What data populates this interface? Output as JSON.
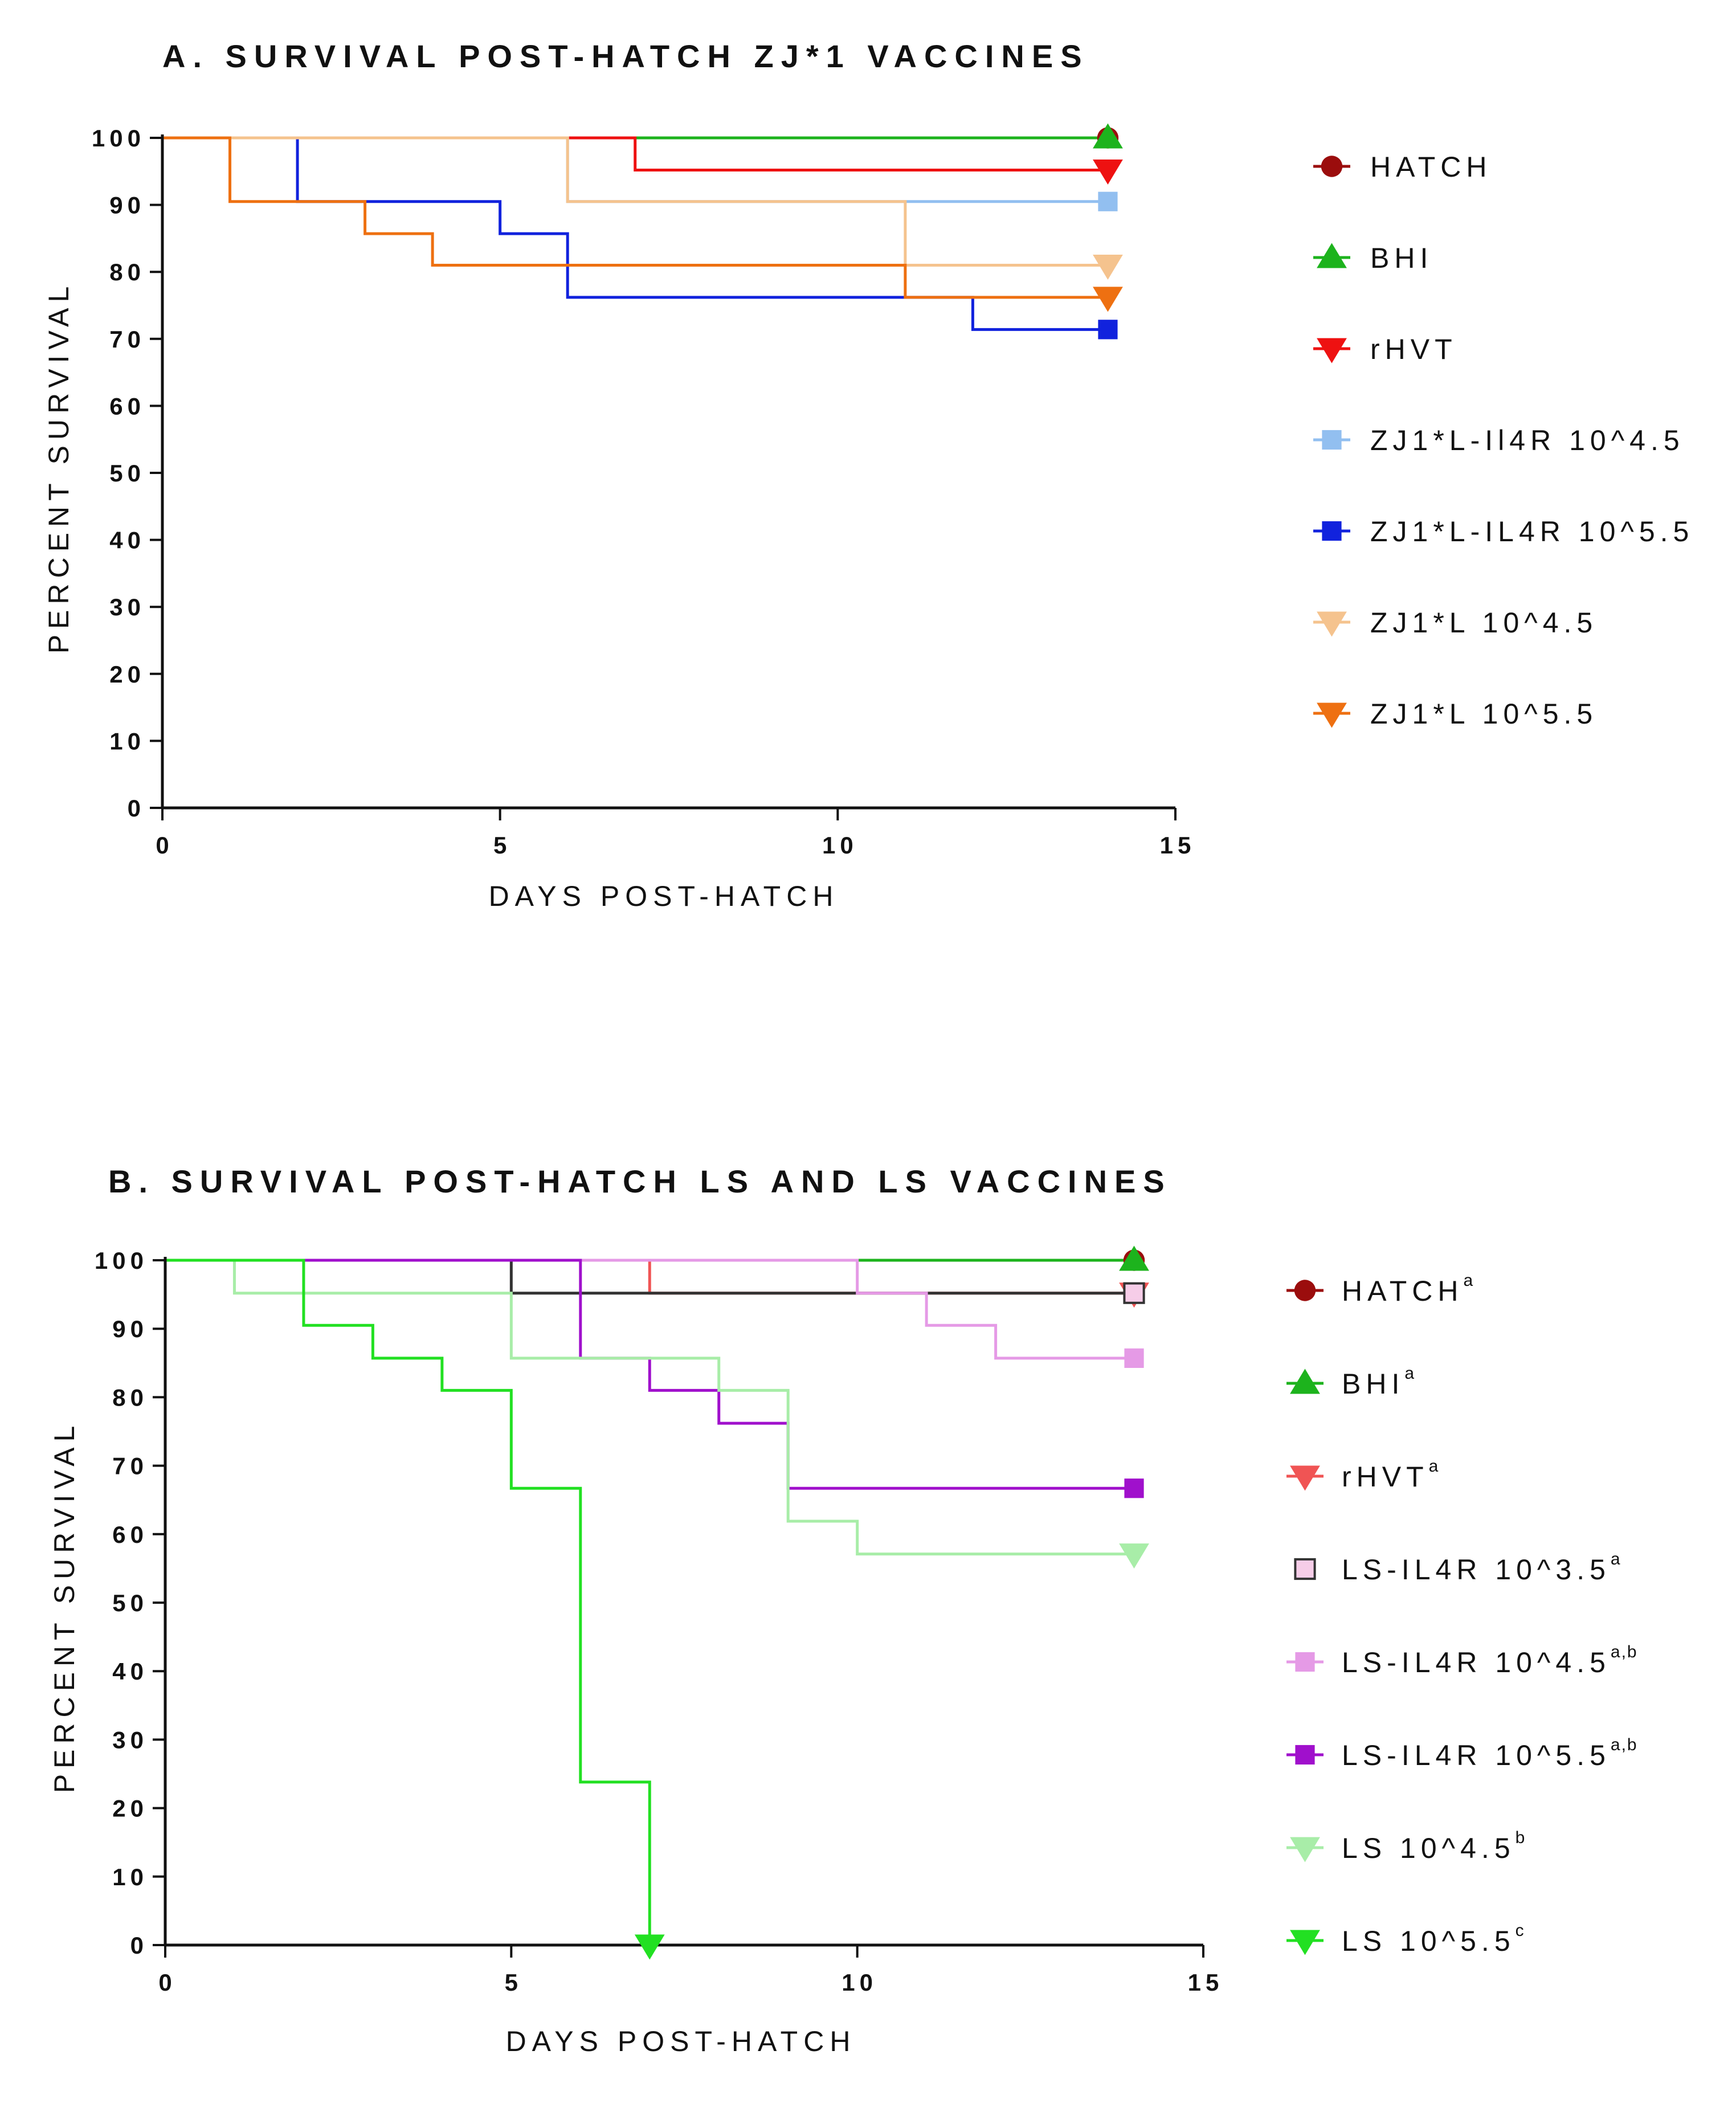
{
  "chart_data": [
    {
      "type": "line",
      "subtype": "kaplan-meier step",
      "title": "A. SURVIVAL POST-HATCH ZJ*1 VACCINES",
      "xlabel": "DAYS POST-HATCH",
      "ylabel": "PERCENT SURVIVAL",
      "xlim": [
        0,
        15
      ],
      "ylim": [
        0,
        100
      ],
      "xticks": [
        0,
        5,
        10,
        15
      ],
      "yticks": [
        0,
        10,
        20,
        30,
        40,
        50,
        60,
        70,
        80,
        90,
        100
      ],
      "grid": false,
      "legend_position": "right",
      "series": [
        {
          "name": "HATCH",
          "sup": "",
          "color": "#9b0d0d",
          "marker": "circle",
          "x": [
            0,
            14
          ],
          "y": [
            100,
            100
          ]
        },
        {
          "name": "BHI",
          "sup": "",
          "color": "#1db31d",
          "marker": "triangle-up",
          "x": [
            0,
            14
          ],
          "y": [
            100,
            100
          ]
        },
        {
          "name": "rHVT",
          "sup": "",
          "color": "#ee1111",
          "marker": "triangle-down",
          "x": [
            0,
            7,
            14
          ],
          "y": [
            100,
            95.2,
            95.2
          ]
        },
        {
          "name": "ZJ1*L-Il4R 10^4.5",
          "sup": "",
          "color": "#92bff0",
          "marker": "square",
          "x": [
            0,
            6,
            10,
            14
          ],
          "y": [
            100,
            90.5,
            90.5,
            90.5
          ]
        },
        {
          "name": "ZJ1*L-IL4R 10^5.5",
          "sup": "",
          "color": "#1122dd",
          "marker": "square",
          "x": [
            0,
            2,
            5,
            6,
            12,
            14
          ],
          "y": [
            100,
            90.5,
            85.7,
            76.2,
            71.4,
            71.4
          ]
        },
        {
          "name": "ZJ1*L 10^4.5",
          "sup": "",
          "color": "#f5c38e",
          "marker": "triangle-down",
          "x": [
            0,
            6,
            11,
            14
          ],
          "y": [
            100,
            90.5,
            81,
            81
          ]
        },
        {
          "name": "ZJ1*L 10^5.5",
          "sup": "",
          "color": "#ee7011",
          "marker": "triangle-down",
          "x": [
            0,
            1,
            3,
            4,
            11,
            14
          ],
          "y": [
            100,
            90.5,
            85.7,
            81,
            76.2,
            76.2
          ]
        }
      ]
    },
    {
      "type": "line",
      "subtype": "kaplan-meier step",
      "title": "B. SURVIVAL POST-HATCH LS AND LS VACCINES",
      "xlabel": "DAYS POST-HATCH",
      "ylabel": "PERCENT SURVIVAL",
      "xlim": [
        0,
        15
      ],
      "ylim": [
        0,
        100
      ],
      "xticks": [
        0,
        5,
        10,
        15
      ],
      "yticks": [
        0,
        10,
        20,
        30,
        40,
        50,
        60,
        70,
        80,
        90,
        100
      ],
      "grid": false,
      "legend_position": "right",
      "series": [
        {
          "name": "HATCH",
          "sup": "a",
          "color": "#9b0d0d",
          "marker": "circle",
          "x": [
            0,
            14
          ],
          "y": [
            100,
            100
          ]
        },
        {
          "name": "BHI",
          "sup": "a",
          "color": "#1db31d",
          "marker": "triangle-up",
          "x": [
            0,
            14
          ],
          "y": [
            100,
            100
          ]
        },
        {
          "name": "rHVT",
          "sup": "a",
          "color": "#f05454",
          "marker": "triangle-down",
          "x": [
            0,
            7,
            14
          ],
          "y": [
            100,
            95.2,
            95.2
          ]
        },
        {
          "name": "LS-IL4R 10^3.5",
          "sup": "a",
          "color": "#333333",
          "fill": "#f6cde8",
          "marker": "square-open",
          "x": [
            0,
            5,
            14
          ],
          "y": [
            100,
            95.2,
            95.2
          ]
        },
        {
          "name": "LS-IL4R 10^4.5",
          "sup": "a,b",
          "color": "#e59ae6",
          "marker": "square",
          "x": [
            0,
            10,
            11,
            12,
            14
          ],
          "y": [
            100,
            95.2,
            90.5,
            85.7,
            85.7
          ]
        },
        {
          "name": "LS-IL4R 10^5.5",
          "sup": "a,b",
          "color": "#a010cc",
          "marker": "square",
          "x": [
            0,
            6,
            7,
            8,
            9,
            14
          ],
          "y": [
            100,
            85.7,
            81,
            76.2,
            66.7,
            66.7
          ]
        },
        {
          "name": "LS 10^4.5",
          "sup": "b",
          "color": "#a8eda8",
          "marker": "triangle-down",
          "x": [
            0,
            1,
            5,
            8,
            9,
            10,
            14
          ],
          "y": [
            100,
            95.2,
            85.7,
            81,
            61.9,
            57.1,
            57.1
          ]
        },
        {
          "name": "LS 10^5.5",
          "sup": "c",
          "color": "#22e022",
          "marker": "triangle-down",
          "x": [
            0,
            2,
            3,
            4,
            5,
            6,
            7
          ],
          "y": [
            100,
            90.5,
            85.7,
            81,
            66.7,
            23.8,
            0
          ]
        }
      ]
    }
  ]
}
